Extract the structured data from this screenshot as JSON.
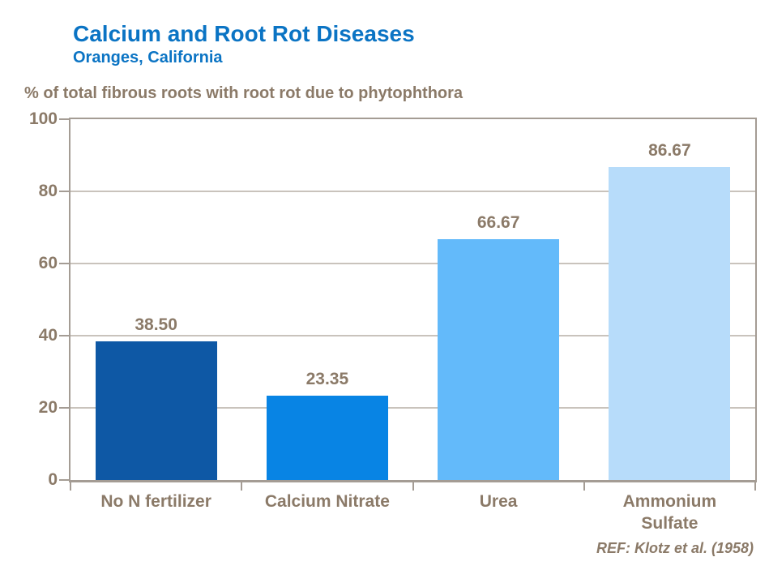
{
  "header": {
    "title": "Calcium and Root Rot Diseases",
    "subtitle": "Oranges, California"
  },
  "footer": {
    "reference": "REF: Klotz et al. (1958)"
  },
  "colors": {
    "background": "#FFFFFF",
    "title_blue": "#0B74C4",
    "label_brown": "#8B7A68",
    "axis_line": "#A49C94",
    "gridline": "#C9C3BC"
  },
  "chart_data": {
    "type": "bar",
    "title": "Calcium and Root Rot Diseases",
    "subtitle": "Oranges, California",
    "ylabel": "% of total fibrous roots with root rot due to phytophthora",
    "xlabel": "",
    "categories": [
      "No N fertilizer",
      "Calcium Nitrate",
      "Urea",
      "Ammonium Sulfate"
    ],
    "values": [
      38.5,
      23.35,
      66.67,
      86.67
    ],
    "value_labels": [
      "38.50",
      "23.35",
      "66.67",
      "86.67"
    ],
    "bar_colors": [
      "#0E58A5",
      "#0884E4",
      "#63BAFA",
      "#B7DCFA"
    ],
    "ylim": [
      0,
      100
    ],
    "yticks": [
      0,
      20,
      40,
      60,
      80,
      100
    ],
    "grid": "horizontal",
    "legend": "none",
    "annotation": "REF: Klotz et al. (1958)"
  }
}
